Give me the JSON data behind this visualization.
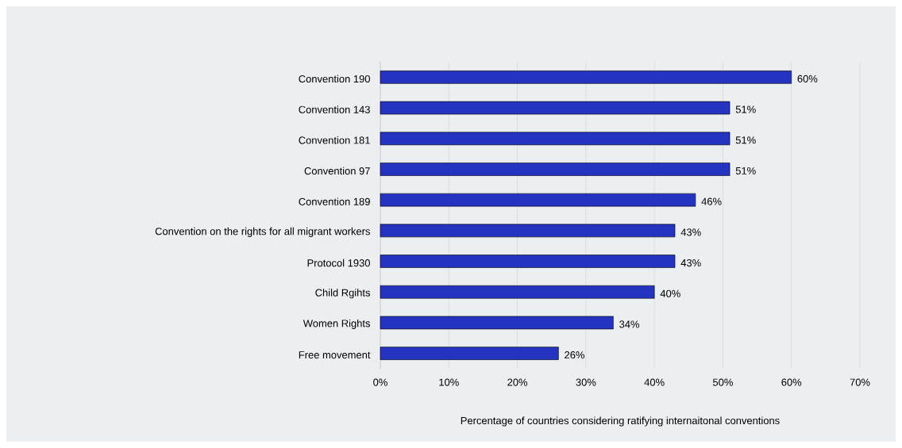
{
  "chart_data": {
    "type": "bar",
    "orientation": "horizontal",
    "xlabel": "Percentage of countries considering ratifying internaitonal conventions",
    "categories": [
      "Convention 190",
      "Convention 143",
      "Convention 181",
      "Convention 97",
      "Convention 189",
      "Convention on the rights for all migrant workers",
      "Protocol 1930",
      "Child Rgihts",
      "Women Rights",
      "Free movement"
    ],
    "values": [
      60,
      51,
      51,
      51,
      46,
      43,
      43,
      40,
      34,
      26
    ],
    "value_labels": [
      "60%",
      "51%",
      "51%",
      "51%",
      "46%",
      "43%",
      "43%",
      "40%",
      "34%",
      "26%"
    ],
    "color": "#2433c0",
    "xlim": [
      0,
      70
    ],
    "xticks": [
      {
        "value": 0,
        "label": "0%"
      },
      {
        "value": 10,
        "label": "10%"
      },
      {
        "value": 20,
        "label": "20%"
      },
      {
        "value": 30,
        "label": "30%"
      },
      {
        "value": 40,
        "label": "40%"
      },
      {
        "value": 50,
        "label": "50%"
      },
      {
        "value": 60,
        "label": "60%"
      },
      {
        "value": 70,
        "label": "70%"
      }
    ],
    "grid": "x"
  }
}
